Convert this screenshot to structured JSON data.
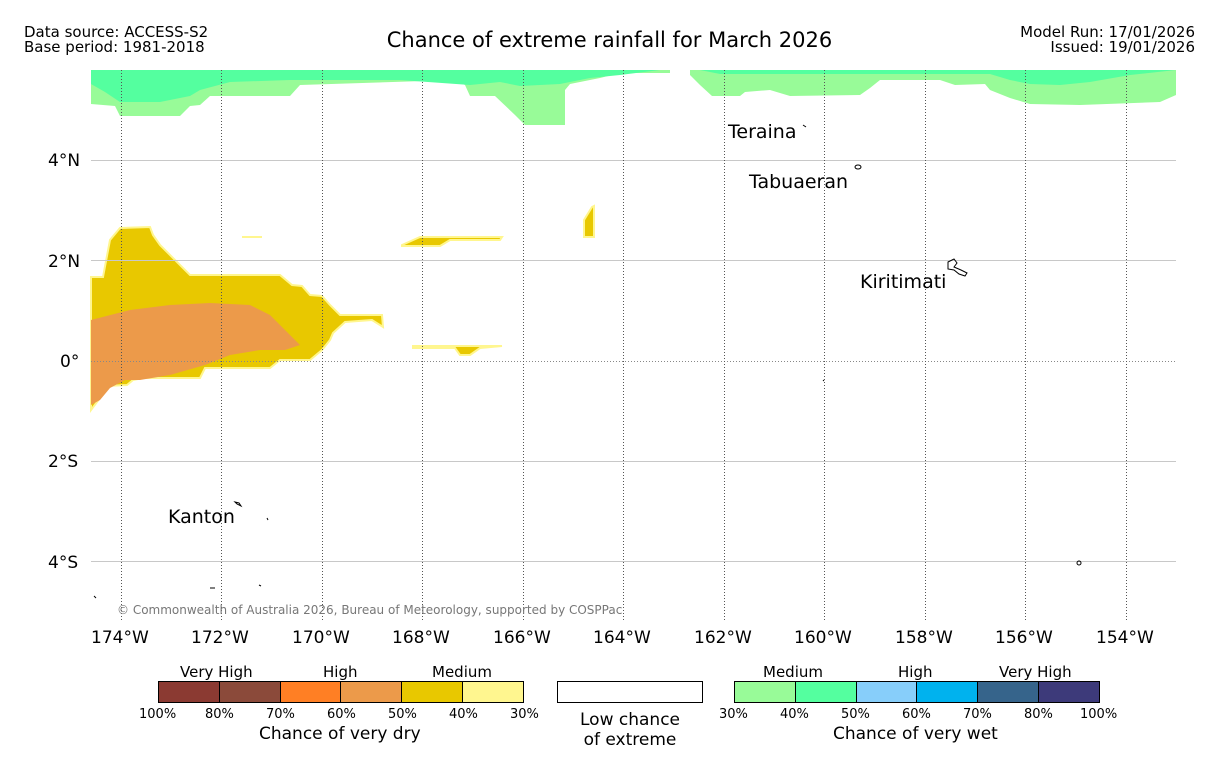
{
  "header": {
    "data_source": "Data source: ACCESS-S2",
    "base_period": "Base period: 1981-2018",
    "title": "Chance of extreme rainfall for March 2026",
    "model_run": "Model Run: 17/01/2026",
    "issued": "Issued: 19/01/2026"
  },
  "map": {
    "lat_labels": [
      "4°N",
      "2°N",
      "0°",
      "2°S",
      "4°S"
    ],
    "lon_labels": [
      "174°W",
      "172°W",
      "170°W",
      "168°W",
      "166°W",
      "164°W",
      "162°W",
      "160°W",
      "158°W",
      "156°W",
      "154°W"
    ],
    "places": {
      "teraina": "Teraina",
      "tabuaeran": "Tabuaeran",
      "kiritimati": "Kiritimati",
      "kanton": "Kanton"
    },
    "copyright": "© Commonwealth of Australia 2026, Bureau of Meteorology, supported by COSPPac"
  },
  "legend": {
    "dry": {
      "categories": [
        "Very High",
        "High",
        "Medium"
      ],
      "ticks": [
        "100%",
        "80%",
        "70%",
        "60%",
        "50%",
        "40%",
        "30%"
      ],
      "colors": [
        "#8b3a32",
        "#8b4a3a",
        "#ff7f24",
        "#ec9a4a",
        "#e8c800",
        "#fff68f"
      ],
      "caption": "Chance of very dry"
    },
    "neutral": {
      "line1": "Low chance",
      "line2": "of extreme",
      "color": "#ffffff"
    },
    "wet": {
      "categories": [
        "Medium",
        "High",
        "Very High"
      ],
      "ticks": [
        "30%",
        "40%",
        "50%",
        "60%",
        "70%",
        "80%",
        "100%"
      ],
      "colors": [
        "#98fb98",
        "#54ff9f",
        "#87cefa",
        "#00b2ee",
        "#36648b",
        "#3d3a7a"
      ],
      "caption": "Chance of very wet"
    }
  }
}
